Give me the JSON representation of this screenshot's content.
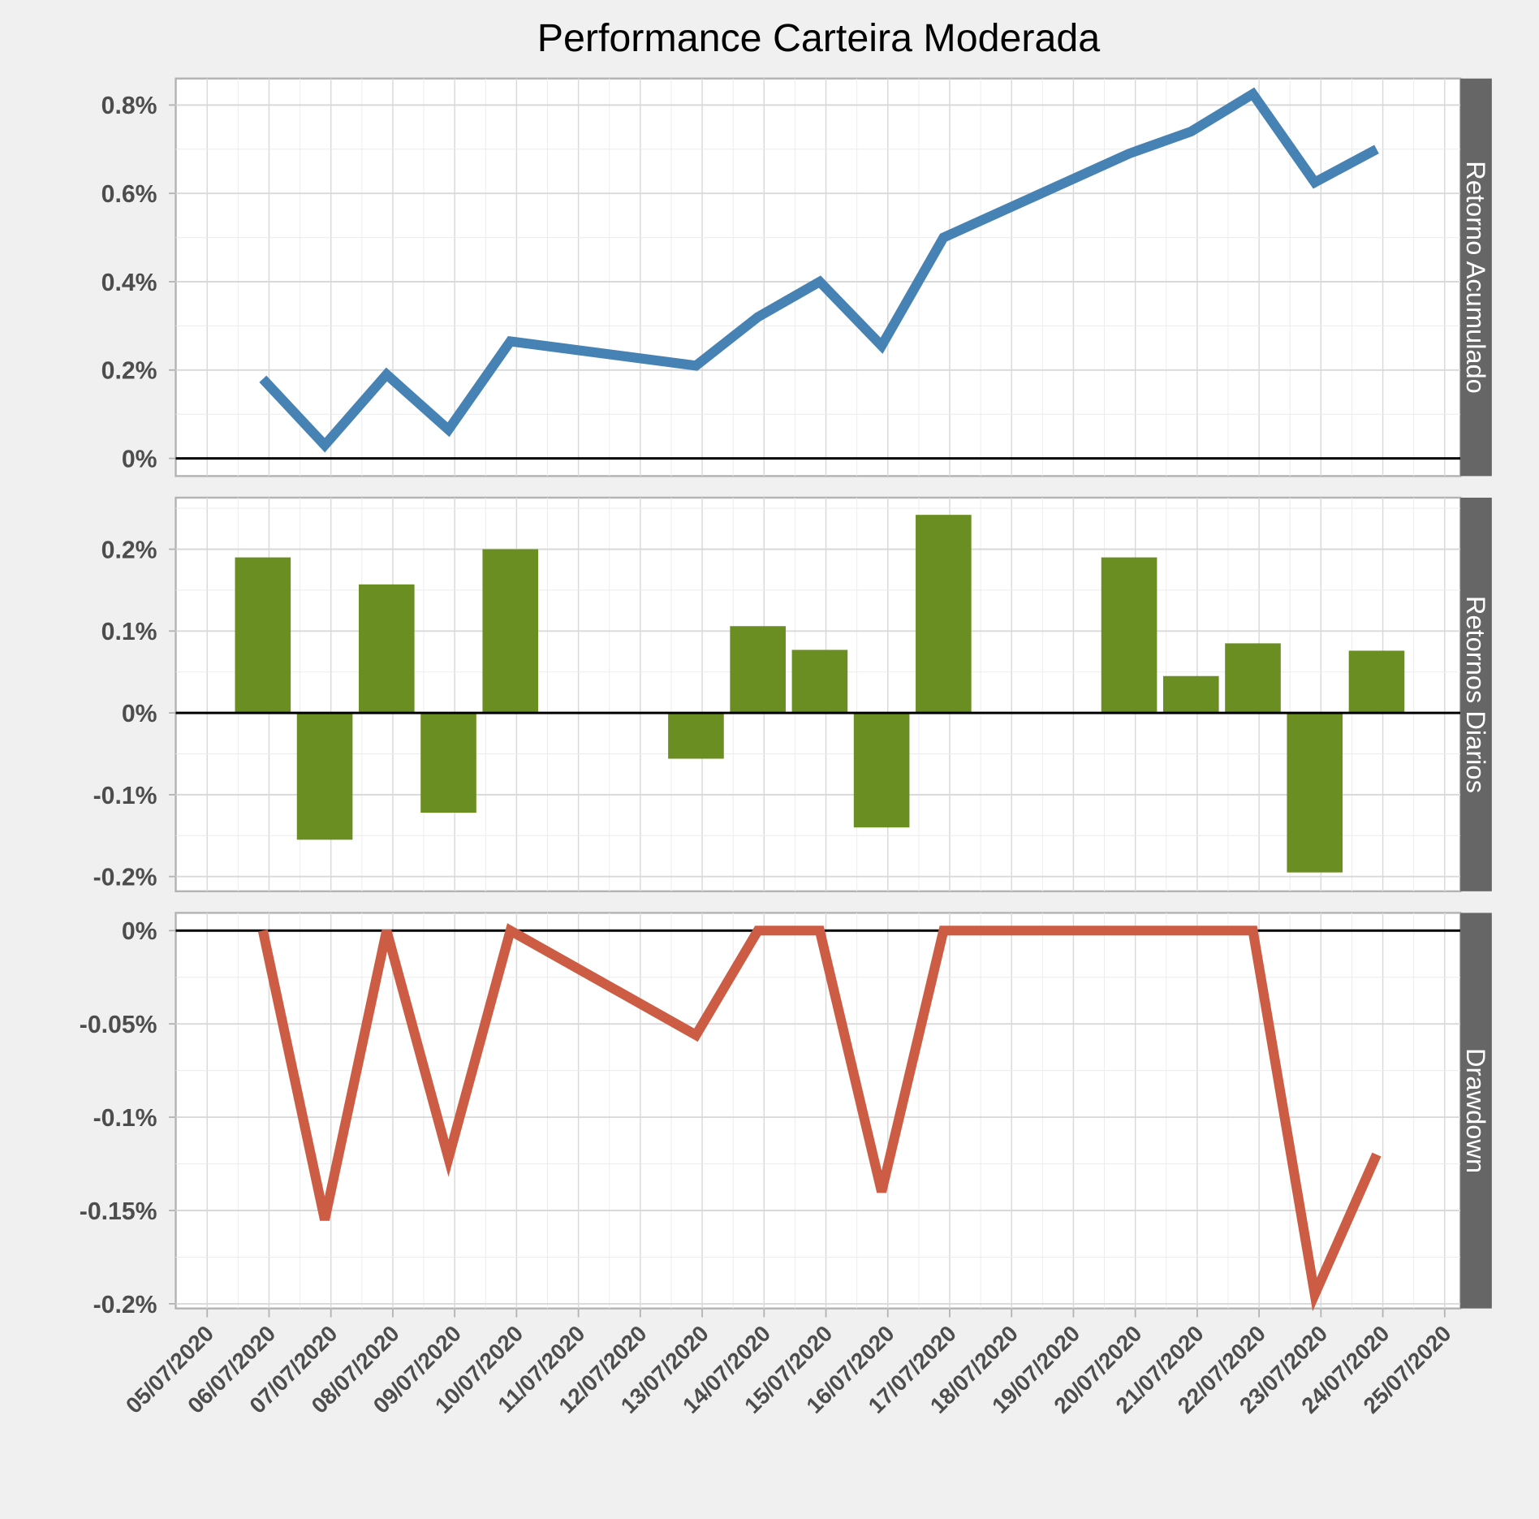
{
  "chart_data": {
    "type": "faceted-line-bar",
    "title": "Performance Carteira Moderada",
    "x_tick_labels": [
      "05/07/2020",
      "06/07/2020",
      "07/07/2020",
      "08/07/2020",
      "09/07/2020",
      "10/07/2020",
      "11/07/2020",
      "12/07/2020",
      "13/07/2020",
      "14/07/2020",
      "15/07/2020",
      "16/07/2020",
      "17/07/2020",
      "18/07/2020",
      "19/07/2020",
      "20/07/2020",
      "21/07/2020",
      "22/07/2020",
      "23/07/2020",
      "24/07/2020",
      "25/07/2020"
    ],
    "x": [
      "06/07/2020",
      "07/07/2020",
      "08/07/2020",
      "09/07/2020",
      "10/07/2020",
      "13/07/2020",
      "14/07/2020",
      "15/07/2020",
      "16/07/2020",
      "17/07/2020",
      "20/07/2020",
      "21/07/2020",
      "22/07/2020",
      "23/07/2020",
      "24/07/2020"
    ],
    "grid": true,
    "panels": [
      {
        "strip_label": "Retorno Acumulado",
        "type": "line",
        "color": "#4682b4",
        "y_unit": "%",
        "ylim": [
          -0.04,
          0.86
        ],
        "y_ticks": [
          0,
          0.2,
          0.4,
          0.6,
          0.8
        ],
        "y_tick_labels": [
          "0%",
          "0.2%",
          "0.4%",
          "0.6%",
          "0.8%"
        ],
        "values": [
          0.18,
          0.03,
          0.19,
          0.065,
          0.265,
          0.21,
          0.32,
          0.4,
          0.255,
          0.5,
          0.69,
          0.74,
          0.825,
          0.625,
          0.7
        ]
      },
      {
        "strip_label": "Retornos Diarios",
        "type": "bar",
        "color": "#6b8e23",
        "y_unit": "%",
        "ylim": [
          -0.218,
          0.263
        ],
        "y_ticks": [
          -0.2,
          -0.1,
          0,
          0.1,
          0.2
        ],
        "y_tick_labels": [
          "-0.2%",
          "-0.1%",
          "0%",
          "0.1%",
          "0.2%"
        ],
        "values": [
          0.19,
          -0.155,
          0.157,
          -0.122,
          0.2,
          -0.056,
          0.106,
          0.077,
          -0.14,
          0.242,
          0.19,
          0.045,
          0.085,
          -0.195,
          0.076
        ]
      },
      {
        "strip_label": "Drawdown",
        "type": "line",
        "color": "#cd5c45",
        "y_unit": "%",
        "ylim": [
          -0.2025,
          0.0095
        ],
        "y_ticks": [
          -0.2,
          -0.15,
          -0.1,
          -0.05,
          0
        ],
        "y_tick_labels": [
          "-0.2%",
          "-0.15%",
          "-0.1%",
          "-0.05%",
          "0%"
        ],
        "values": [
          0,
          -0.155,
          0,
          -0.122,
          0,
          -0.056,
          0,
          0,
          -0.14,
          0,
          0,
          0,
          0,
          -0.195,
          -0.12
        ]
      }
    ]
  }
}
